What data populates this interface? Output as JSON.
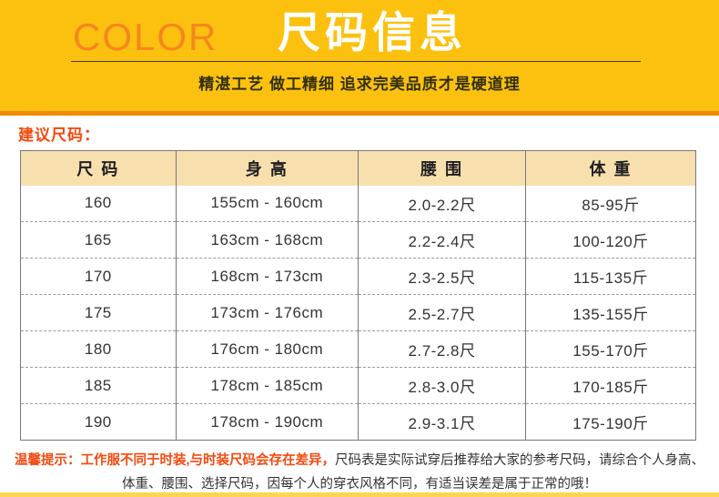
{
  "banner": {
    "brand": "COLOR",
    "title": "尺码信息",
    "tagline": "精湛工艺 做工精细 追求完美品质才是硬道理"
  },
  "section": {
    "label": "建议尺码："
  },
  "table": {
    "headers": [
      "尺 码",
      "身 高",
      "腰 围",
      "体 重"
    ],
    "rows": [
      [
        "160",
        "155cm - 160cm",
        "2.0-2.2尺",
        "85-95斤"
      ],
      [
        "165",
        "163cm - 168cm",
        "2.2-2.4尺",
        "100-120斤"
      ],
      [
        "170",
        "168cm - 173cm",
        "2.3-2.5尺",
        "115-135斤"
      ],
      [
        "175",
        "173cm - 176cm",
        "2.5-2.7尺",
        "135-155斤"
      ],
      [
        "180",
        "176cm - 180cm",
        "2.7-2.8尺",
        "155-170斤"
      ],
      [
        "185",
        "178cm - 185cm",
        "2.8-3.0尺",
        "170-185斤"
      ],
      [
        "190",
        "178cm - 190cm",
        "2.9-3.1尺",
        "175-190斤"
      ]
    ]
  },
  "note": {
    "highlight": "温馨提示：工作服不同于时装,与时装尺码会存在差异，",
    "line1_rest": "尺码表是实际试穿后推荐给大家的参考尺码，请综合个人身高、",
    "line2": "体重、腰围、选择尺码，因每个人的穿衣风格不同，有适当误差是属于正常的哦！"
  },
  "colors": {
    "banner_yellow": "#FCC10E",
    "strip_orange": "#F28A00",
    "brand_orange": "#F6861F",
    "title_white": "#FFFFFF",
    "accent_red": "#F4490F",
    "header_bg": "#F8DFAE",
    "bottom_strip_yellow": "#FFD54E",
    "table_border": "#777777",
    "text_dark": "#333333"
  }
}
